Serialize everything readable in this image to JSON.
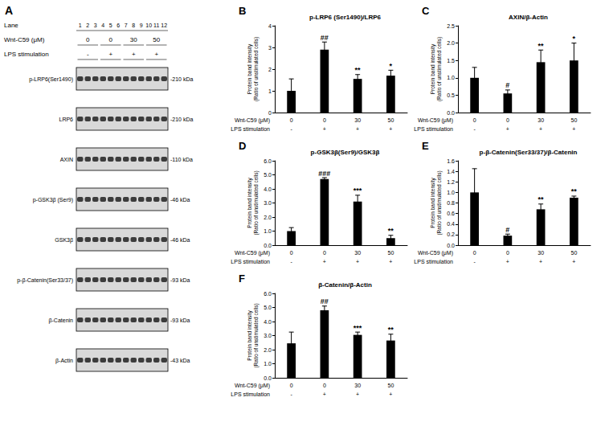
{
  "panel_a": {
    "panel": "A",
    "lane_row": {
      "label": "Lane",
      "lanes": [
        "1",
        "2",
        "3",
        "4",
        "5",
        "6",
        "7",
        "8",
        "9",
        "10",
        "11",
        "12"
      ]
    },
    "wnt_row": {
      "label": "Wnt-C59 (μM)",
      "groups": [
        "0",
        "0",
        "30",
        "50"
      ]
    },
    "lps_row": {
      "label": "LPS stimulation",
      "groups": [
        "-",
        "+",
        "+",
        "+"
      ]
    },
    "blots": [
      {
        "protein": "p-LRP6(Ser1490)",
        "size": "-210 kDa"
      },
      {
        "protein": "LRP6",
        "size": "-210 kDa"
      },
      {
        "protein": "AXIN",
        "size": "-110 kDa"
      },
      {
        "protein": "p-GSK3β (Ser9)",
        "size": "-46 kDa"
      },
      {
        "protein": "GSK3β",
        "size": "-46 kDa"
      },
      {
        "protein": "p-β-Catenin(Ser33/37)",
        "size": "-93 kDa"
      },
      {
        "protein": "β-Catenin",
        "size": "-93 kDa"
      },
      {
        "protein": "β-Actin",
        "size": "-43 kDa"
      }
    ]
  },
  "chart_data": [
    {
      "panel": "B",
      "type": "bar",
      "title": "p-LRP6 (Ser1490)/LRP6",
      "y_label": "Protein band intensity\n(Ratio of unstimulated cells)",
      "row_labels": [
        "Wnt-C59 (μM)",
        "LPS stimulation"
      ],
      "categories": [
        "0",
        "0",
        "30",
        "50"
      ],
      "lps": [
        "-",
        "+",
        "+",
        "+"
      ],
      "values": [
        1.0,
        2.9,
        1.55,
        1.7
      ],
      "error": [
        0.55,
        0.35,
        0.2,
        0.25
      ],
      "annotations": [
        null,
        "##",
        "**",
        "*"
      ],
      "color": "#000000",
      "ylim": [
        0,
        4
      ],
      "yticks": [
        0,
        1,
        2,
        3,
        4
      ],
      "grid": false
    },
    {
      "panel": "C",
      "type": "bar",
      "title": "AXIN/β-Actin",
      "y_label": "Protein band intensity\n(Ratio of unstimulated cells)",
      "row_labels": [
        "Wnt-C59 (μM)",
        "LPS stimulation"
      ],
      "categories": [
        "0",
        "0",
        "30",
        "50"
      ],
      "lps": [
        "-",
        "+",
        "+",
        "+"
      ],
      "values": [
        1.0,
        0.55,
        1.45,
        1.5
      ],
      "error": [
        0.3,
        0.1,
        0.35,
        0.5
      ],
      "annotations": [
        null,
        "#",
        "**",
        "*"
      ],
      "color": "#000000",
      "ylim": [
        0,
        2.5
      ],
      "yticks": [
        {
          "value": 0,
          "label": "0.0"
        },
        0.5,
        {
          "value": 1,
          "label": "1.0"
        },
        1.5,
        {
          "value": 2,
          "label": "2.0"
        },
        2.5
      ],
      "grid": false
    },
    {
      "panel": "D",
      "type": "bar",
      "title": "p-GSK3β(Ser9)/GSK3β",
      "y_label": "Protein band intensity\n(Ratio of unstimulated cells)",
      "row_labels": [
        "Wnt-C59 (μM)",
        "LPS stimulation"
      ],
      "categories": [
        "0",
        "0",
        "30",
        "50"
      ],
      "lps": [
        "-",
        "+",
        "+",
        "+"
      ],
      "values": [
        1.0,
        4.7,
        3.1,
        0.5
      ],
      "error": [
        0.25,
        0.1,
        0.45,
        0.2
      ],
      "annotations": [
        null,
        "###",
        "***",
        "**"
      ],
      "color": "#000000",
      "ylim": [
        0,
        6
      ],
      "yticks": [
        {
          "value": 0,
          "label": "0.0"
        },
        {
          "value": 1,
          "label": "1.0"
        },
        {
          "value": 2,
          "label": "2.0"
        },
        {
          "value": 3,
          "label": "3.0"
        },
        {
          "value": 4,
          "label": "4.0"
        },
        {
          "value": 5,
          "label": "5.0"
        },
        {
          "value": 6,
          "label": "6.0"
        }
      ],
      "grid": false
    },
    {
      "panel": "E",
      "type": "bar",
      "title": "p-β-Catenin(Ser33/37)/β-Catenin",
      "y_label": "Protein band intensity\n(Ratio of unstimulated cells)",
      "row_labels": [
        "Wnt-C59 (μM)",
        "LPS stimulation"
      ],
      "categories": [
        "0",
        "0",
        "30",
        "50"
      ],
      "lps": [
        "-",
        "+",
        "+",
        "+"
      ],
      "values": [
        1.0,
        0.18,
        0.68,
        0.9
      ],
      "error": [
        0.45,
        0.03,
        0.1,
        0.03
      ],
      "annotations": [
        null,
        "#",
        "**",
        "**"
      ],
      "color": "#000000",
      "ylim": [
        0,
        1.6
      ],
      "yticks": [
        {
          "value": 0,
          "label": "0.0"
        },
        0.2,
        0.4,
        0.6,
        0.8,
        {
          "value": 1,
          "label": "1.0"
        },
        1.2,
        1.4,
        1.6
      ],
      "grid": false
    },
    {
      "panel": "F",
      "type": "bar",
      "title": "β-Catenin/β-Actin",
      "y_label": "Protein band intensity\n(Ratio of unstimulated cells)",
      "row_labels": [
        "Wnt-C59 (μM)",
        "LPS stimulation"
      ],
      "categories": [
        "0",
        "0",
        "30",
        "50"
      ],
      "lps": [
        "-",
        "+",
        "+",
        "+"
      ],
      "values": [
        2.45,
        4.8,
        3.05,
        2.65
      ],
      "error": [
        0.8,
        0.3,
        0.2,
        0.45
      ],
      "annotations": [
        null,
        "##",
        "***",
        "**"
      ],
      "color": "#000000",
      "ylim": [
        0,
        6
      ],
      "yticks": [
        {
          "value": 0,
          "label": "0.0"
        },
        {
          "value": 1,
          "label": "1.0"
        },
        {
          "value": 2,
          "label": "2.0"
        },
        {
          "value": 3,
          "label": "3.0"
        },
        {
          "value": 4,
          "label": "4.0"
        },
        {
          "value": 5,
          "label": "5.0"
        },
        {
          "value": 6,
          "label": "6.0"
        }
      ],
      "grid": false
    }
  ]
}
